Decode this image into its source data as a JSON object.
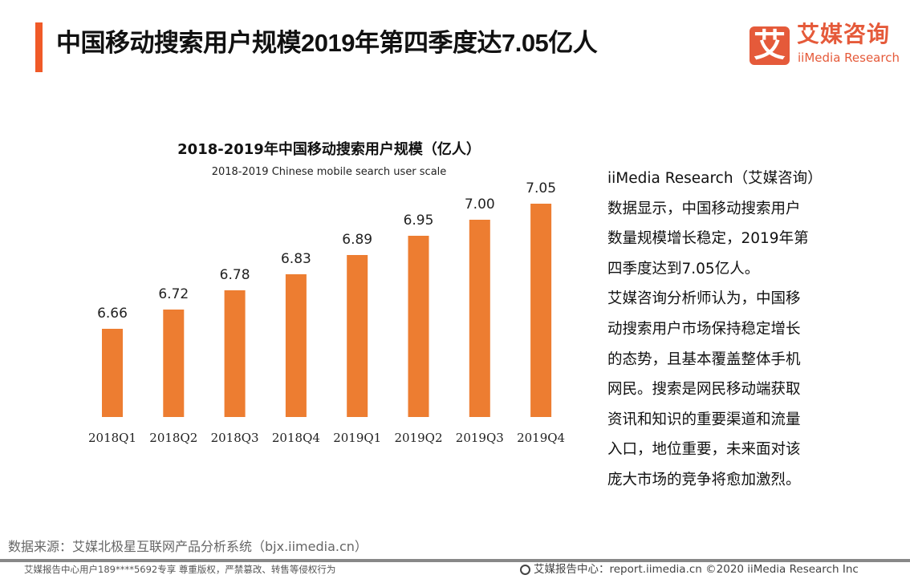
{
  "header": {
    "title": "中国移动搜索用户规模2019年第四季度达7.05亿人",
    "accent_color": "#f05a28"
  },
  "logo": {
    "mark": "艾",
    "cn": "艾媒咨询",
    "en": "iiMedia Research"
  },
  "chart_data": {
    "type": "bar",
    "title": "2018-2019年中国移动搜索用户规模（亿人）",
    "subtitle": "2018-2019 Chinese mobile search user scale",
    "categories": [
      "2018Q1",
      "2018Q2",
      "2018Q3",
      "2018Q4",
      "2019Q1",
      "2019Q2",
      "2019Q3",
      "2019Q4"
    ],
    "values": [
      6.66,
      6.72,
      6.78,
      6.83,
      6.89,
      6.95,
      7.0,
      7.05
    ],
    "value_labels": [
      "6.66",
      "6.72",
      "6.78",
      "6.83",
      "6.89",
      "6.95",
      "7.00",
      "7.05"
    ],
    "bar_color": "#ed7d31",
    "grid": false,
    "legend": "none"
  },
  "analysis": {
    "lines": [
      "iiMedia Research（艾媒咨询）",
      "数据显示，中国移动搜索用户",
      "数量规模增长稳定，2019年第",
      "四季度达到7.05亿人。",
      "艾媒咨询分析师认为，中国移",
      "动搜索用户市场保持稳定增长",
      "的态势，且基本覆盖整体手机",
      "网民。搜索是网民移动端获取",
      "资讯和知识的重要渠道和流量",
      "入口，地位重要，未来面对该",
      "庞大市场的竞争将愈加激烈。"
    ]
  },
  "footer": {
    "source": "数据来源：艾媒北极星互联网产品分析系统（bjx.iimedia.cn）",
    "copyright_notice": "艾媒报告中心用户189****5692专享 尊重版权，严禁篡改、转售等侵权行为",
    "site": "艾媒报告中心：report.iimedia.cn  ©2020  iiMedia Research Inc",
    "site_icon": "globe-icon"
  }
}
